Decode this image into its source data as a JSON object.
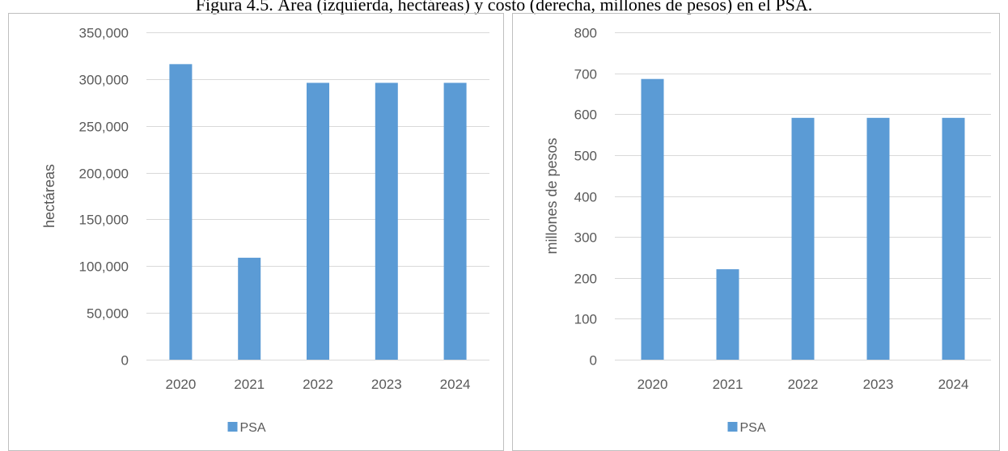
{
  "figure": {
    "caption": "Figura 4.5. Área (izquierda, hectáreas) y costo (derecha, millones de pesos) en el PSA."
  },
  "colors": {
    "bar": "#5B9BD5",
    "grid": "#D9D9D9",
    "text": "#595959",
    "border": "#BFBFBF"
  },
  "chart_data": [
    {
      "type": "bar",
      "title": "",
      "xlabel": "",
      "ylabel": "hectáreas",
      "categories": [
        "2020",
        "2021",
        "2022",
        "2023",
        "2024"
      ],
      "series": [
        {
          "name": "PSA",
          "values": [
            316000,
            109000,
            296000,
            296000,
            296000
          ]
        }
      ],
      "ylim": [
        0,
        350000
      ],
      "yticks": [
        0,
        50000,
        100000,
        150000,
        200000,
        250000,
        300000,
        350000
      ],
      "ytick_labels": [
        "0",
        "50,000",
        "100,000",
        "150,000",
        "200,000",
        "250,000",
        "300,000",
        "350,000"
      ],
      "grid": true,
      "legend": "bottom"
    },
    {
      "type": "bar",
      "title": "",
      "xlabel": "",
      "ylabel": "millones de pesos",
      "categories": [
        "2020",
        "2021",
        "2022",
        "2023",
        "2024"
      ],
      "series": [
        {
          "name": "PSA",
          "values": [
            686,
            221,
            591,
            591,
            591
          ]
        }
      ],
      "ylim": [
        0,
        800
      ],
      "yticks": [
        0,
        100,
        200,
        300,
        400,
        500,
        600,
        700,
        800
      ],
      "ytick_labels": [
        "0",
        "100",
        "200",
        "300",
        "400",
        "500",
        "600",
        "700",
        "800"
      ],
      "grid": true,
      "legend": "bottom"
    }
  ]
}
